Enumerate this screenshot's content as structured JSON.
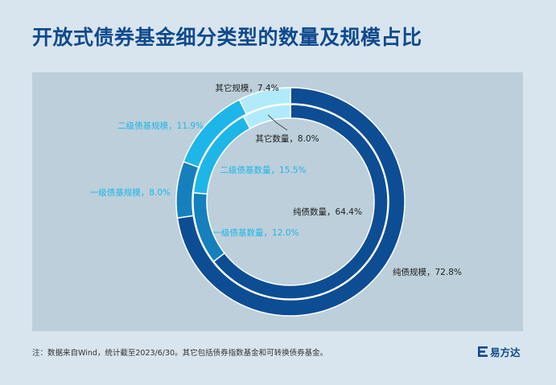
{
  "title": "开放式债券基金细分类型的数量及规模占比",
  "note": "注：数据来自Wind，统计截至2023/6/30。其它包括债券指数基金和可转换债券基金。",
  "brand": "易方达",
  "chart_data": {
    "type": "pie",
    "subtype": "nested-donut",
    "series": [
      {
        "name": "规模",
        "ring": "outer",
        "slices": [
          {
            "label": "纯债规模，72.8%",
            "category": "纯债",
            "value": 72.8,
            "color": "#0d4d94"
          },
          {
            "label": "一级债基规模，8.0%",
            "category": "一级债基",
            "value": 8.0,
            "color": "#1580bd"
          },
          {
            "label": "二级债基规模，11.9%",
            "category": "二级债基",
            "value": 11.9,
            "color": "#1eb6e8"
          },
          {
            "label": "其它规模，7.4%",
            "category": "其它",
            "value": 7.4,
            "color": "#b1ebfb"
          }
        ]
      },
      {
        "name": "数量",
        "ring": "inner",
        "slices": [
          {
            "label": "纯债数量，64.4%",
            "category": "纯债",
            "value": 64.4,
            "color": "#0d4d94"
          },
          {
            "label": "一级债基数量，12.0%",
            "category": "一级债基",
            "value": 12.0,
            "color": "#1580bd"
          },
          {
            "label": "二级债基数量，15.5%",
            "category": "二级债基",
            "value": 15.5,
            "color": "#1eb6e8"
          },
          {
            "label": "其它数量，8.0%",
            "category": "其它",
            "value": 8.0,
            "color": "#b1ebfb"
          }
        ]
      }
    ]
  }
}
